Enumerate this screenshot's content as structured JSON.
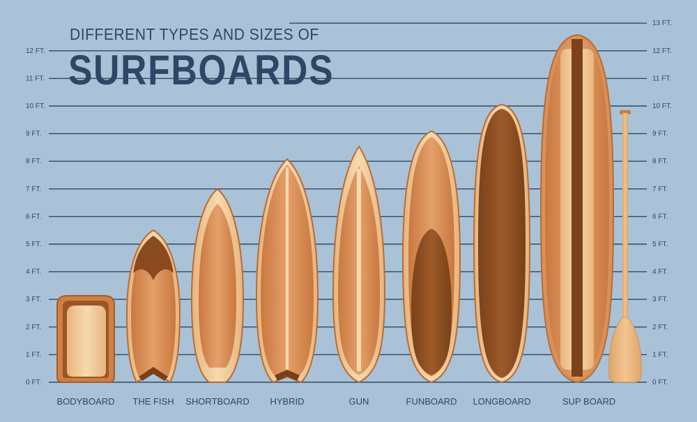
{
  "title": {
    "line1": "DIFFERENT TYPES AND SIZES OF",
    "line2": "SURFBOARDS"
  },
  "scale": {
    "unit": "FT.",
    "left_ticks": [
      "0 FT.",
      "1 FT.",
      "2 FT.",
      "3 FT.",
      "4 FT.",
      "5 FT.",
      "6 FT.",
      "7 FT.",
      "8 FT.",
      "9 FT.",
      "10 FT.",
      "11 FT.",
      "12 FT."
    ],
    "right_ticks": [
      "0 FT.",
      "1 FT.",
      "2 FT.",
      "3 FT.",
      "4 FT.",
      "5 FT.",
      "6 FT.",
      "7 FT.",
      "8 FT.",
      "9 FT.",
      "10 FT.",
      "11 FT.",
      "12 FT.",
      "13 FT."
    ]
  },
  "boards": [
    {
      "name": "BODYBOARD",
      "length_ft": 3.1
    },
    {
      "name": "THE FISH",
      "length_ft": 5.5
    },
    {
      "name": "SHORTBOARD",
      "length_ft": 6.9
    },
    {
      "name": "HYBRID",
      "length_ft": 8.1
    },
    {
      "name": "GUN",
      "length_ft": 8.5
    },
    {
      "name": "FUNBOARD",
      "length_ft": 9.0
    },
    {
      "name": "LONGBOARD",
      "length_ft": 10.0
    },
    {
      "name": "SUP BOARD",
      "length_ft": 12.4
    }
  ],
  "colors": {
    "background": "#a9c2d7",
    "gridline": "#2f4766",
    "text": "#2f4766",
    "wood_light": "#f3cf9d",
    "wood_mid": "#d9915b",
    "wood_dark": "#8b4f22",
    "wood_rim": "#b86c34"
  }
}
